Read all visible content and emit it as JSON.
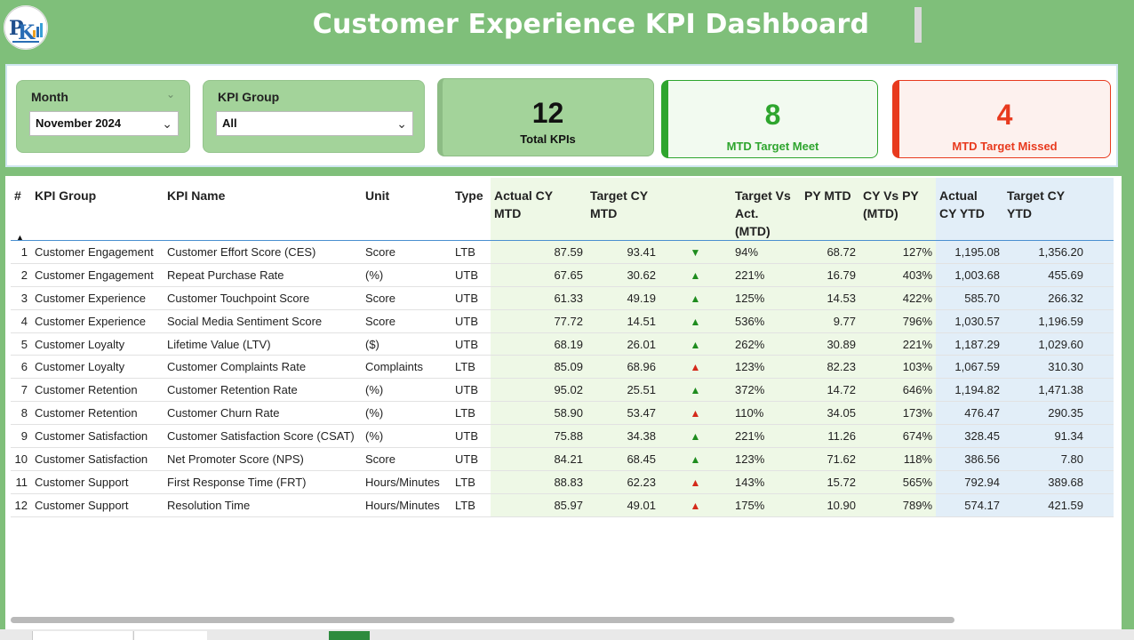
{
  "header": {
    "title": "Customer Experience KPI Dashboard",
    "logo_text": "PK"
  },
  "slicers": {
    "month": {
      "label": "Month",
      "value": "November 2024"
    },
    "kpi_group": {
      "label": "KPI Group",
      "value": "All"
    }
  },
  "cards": {
    "total": {
      "value": "12",
      "label": "Total KPIs"
    },
    "meet": {
      "value": "8",
      "label": "MTD Target Meet"
    },
    "missed": {
      "value": "4",
      "label": "MTD Target Missed"
    }
  },
  "table": {
    "headers": {
      "num": "#",
      "group": "KPI Group",
      "name": "KPI Name",
      "unit": "Unit",
      "type": "Type",
      "actual_mtd_1": "Actual CY",
      "actual_mtd_2": "MTD",
      "target_mtd_1": "Target CY",
      "target_mtd_2": "MTD",
      "tva_1": "Target Vs",
      "tva_2": "Act.",
      "tva_3": "(MTD)",
      "py_mtd": "PY MTD",
      "cyvpy_1": "CY Vs PY",
      "cyvpy_2": "(MTD)",
      "actual_ytd_1": "Actual",
      "actual_ytd_2": "CY YTD",
      "target_ytd_1": "Target CY",
      "target_ytd_2": "YTD"
    },
    "rows": [
      {
        "num": "1",
        "group": "Customer Engagement",
        "name": "Customer Effort Score (CES)",
        "unit": "Score",
        "type": "LTB",
        "actual_mtd": "87.59",
        "target_mtd": "93.41",
        "icon": "down-green",
        "tva": "94%",
        "py_mtd": "68.72",
        "cyvpy": "127%",
        "actual_ytd": "1,195.08",
        "target_ytd": "1,356.20"
      },
      {
        "num": "2",
        "group": "Customer Engagement",
        "name": "Repeat Purchase Rate",
        "unit": "(%)",
        "type": "UTB",
        "actual_mtd": "67.65",
        "target_mtd": "30.62",
        "icon": "up-green",
        "tva": "221%",
        "py_mtd": "16.79",
        "cyvpy": "403%",
        "actual_ytd": "1,003.68",
        "target_ytd": "455.69"
      },
      {
        "num": "3",
        "group": "Customer Experience",
        "name": "Customer Touchpoint Score",
        "unit": "Score",
        "type": "UTB",
        "actual_mtd": "61.33",
        "target_mtd": "49.19",
        "icon": "up-green",
        "tva": "125%",
        "py_mtd": "14.53",
        "cyvpy": "422%",
        "actual_ytd": "585.70",
        "target_ytd": "266.32"
      },
      {
        "num": "4",
        "group": "Customer Experience",
        "name": "Social Media Sentiment Score",
        "unit": "Score",
        "type": "UTB",
        "actual_mtd": "77.72",
        "target_mtd": "14.51",
        "icon": "up-green",
        "tva": "536%",
        "py_mtd": "9.77",
        "cyvpy": "796%",
        "actual_ytd": "1,030.57",
        "target_ytd": "1,196.59"
      },
      {
        "num": "5",
        "group": "Customer Loyalty",
        "name": "Lifetime Value (LTV)",
        "unit": "($)",
        "type": "UTB",
        "actual_mtd": "68.19",
        "target_mtd": "26.01",
        "icon": "up-green",
        "tva": "262%",
        "py_mtd": "30.89",
        "cyvpy": "221%",
        "actual_ytd": "1,187.29",
        "target_ytd": "1,029.60"
      },
      {
        "num": "6",
        "group": "Customer Loyalty",
        "name": "Customer Complaints Rate",
        "unit": "Complaints",
        "type": "LTB",
        "actual_mtd": "85.09",
        "target_mtd": "68.96",
        "icon": "up-red",
        "tva": "123%",
        "py_mtd": "82.23",
        "cyvpy": "103%",
        "actual_ytd": "1,067.59",
        "target_ytd": "310.30"
      },
      {
        "num": "7",
        "group": "Customer Retention",
        "name": "Customer Retention Rate",
        "unit": "(%)",
        "type": "UTB",
        "actual_mtd": "95.02",
        "target_mtd": "25.51",
        "icon": "up-green",
        "tva": "372%",
        "py_mtd": "14.72",
        "cyvpy": "646%",
        "actual_ytd": "1,194.82",
        "target_ytd": "1,471.38"
      },
      {
        "num": "8",
        "group": "Customer Retention",
        "name": "Customer Churn Rate",
        "unit": " (%)",
        "type": "LTB",
        "actual_mtd": "58.90",
        "target_mtd": "53.47",
        "icon": "up-red",
        "tva": "110%",
        "py_mtd": "34.05",
        "cyvpy": "173%",
        "actual_ytd": "476.47",
        "target_ytd": "290.35"
      },
      {
        "num": "9",
        "group": "Customer Satisfaction",
        "name": "Customer Satisfaction Score (CSAT)",
        "unit": " (%)",
        "type": "UTB",
        "actual_mtd": "75.88",
        "target_mtd": "34.38",
        "icon": "up-green",
        "tva": "221%",
        "py_mtd": "11.26",
        "cyvpy": "674%",
        "actual_ytd": "328.45",
        "target_ytd": "91.34"
      },
      {
        "num": "10",
        "group": "Customer Satisfaction",
        "name": "Net Promoter Score (NPS)",
        "unit": "Score",
        "type": "UTB",
        "actual_mtd": "84.21",
        "target_mtd": "68.45",
        "icon": "up-green",
        "tva": "123%",
        "py_mtd": "71.62",
        "cyvpy": "118%",
        "actual_ytd": "386.56",
        "target_ytd": "7.80"
      },
      {
        "num": "11",
        "group": "Customer Support",
        "name": "First Response Time (FRT)",
        "unit": "Hours/Minutes",
        "type": "LTB",
        "actual_mtd": "88.83",
        "target_mtd": "62.23",
        "icon": "up-red",
        "tva": "143%",
        "py_mtd": "15.72",
        "cyvpy": "565%",
        "actual_ytd": "792.94",
        "target_ytd": "389.68"
      },
      {
        "num": "12",
        "group": "Customer Support",
        "name": "Resolution Time",
        "unit": "Hours/Minutes",
        "type": "LTB",
        "actual_mtd": "85.97",
        "target_mtd": "49.01",
        "icon": "up-red",
        "tva": "175%",
        "py_mtd": "10.90",
        "cyvpy": "789%",
        "actual_ytd": "574.17",
        "target_ytd": "421.59"
      }
    ]
  },
  "colors": {
    "header_green": "#7fbf7a",
    "card_green": "#a3d39a",
    "meet_green": "#2ea52e",
    "missed_red": "#e83a1e",
    "mtd_band": "#eef8e6",
    "ytd_band": "#e2eef8"
  }
}
